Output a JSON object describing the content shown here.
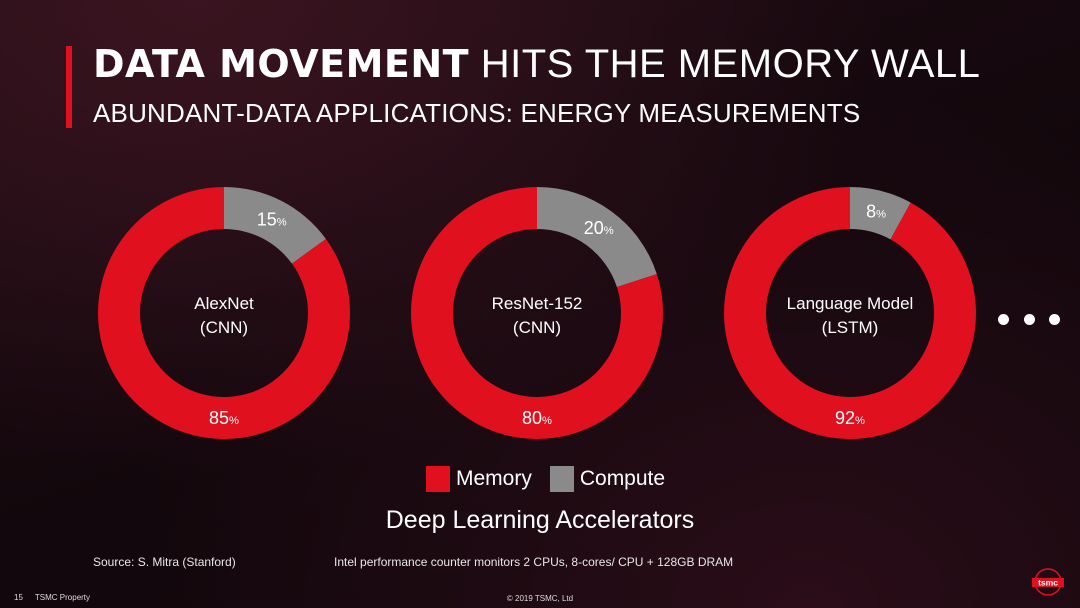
{
  "header": {
    "title_bold": "DATA MOVEMENT",
    "title_rest": " HITS THE MEMORY WALL",
    "subtitle": "ABUNDANT-DATA APPLICATIONS: ENERGY MEASUREMENTS"
  },
  "colors": {
    "memory": "#e0101e",
    "compute": "#8a8a8a",
    "accent": "#e0101e"
  },
  "chart_data": {
    "type": "pie",
    "variant": "donut",
    "series_names": [
      "Memory",
      "Compute"
    ],
    "charts": [
      {
        "label_line1": "AlexNet",
        "label_line2": "(CNN)",
        "memory": 85,
        "compute": 15,
        "memory_label": "85",
        "compute_label": "15"
      },
      {
        "label_line1": "ResNet-152",
        "label_line2": "(CNN)",
        "memory": 80,
        "compute": 20,
        "memory_label": "80",
        "compute_label": "20"
      },
      {
        "label_line1": "Language Model",
        "label_line2": "(LSTM)",
        "memory": 92,
        "compute": 8,
        "memory_label": "92",
        "compute_label": "8"
      }
    ],
    "percent_suffix": "%",
    "legend": {
      "memory": "Memory",
      "compute": "Compute",
      "placement": "bottom-center"
    },
    "caption": "Deep Learning Accelerators"
  },
  "footer": {
    "source": "Source: S. Mitra (Stanford)",
    "note": "Intel performance counter monitors 2 CPUs, 8-cores/ CPU + 128GB DRAM",
    "page_number": "15",
    "property": "TSMC Property",
    "copyright": "© 2019 TSMC, Ltd",
    "logo_text": "tsmc"
  }
}
